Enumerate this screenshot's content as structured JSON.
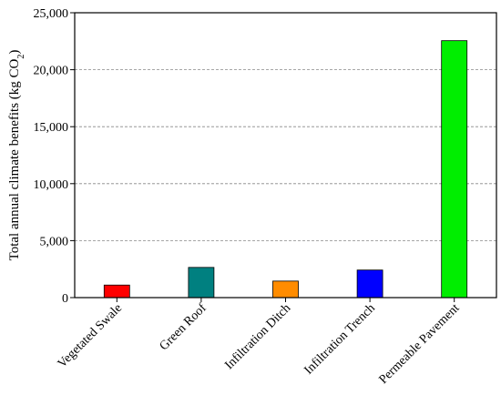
{
  "chart_data": {
    "type": "bar",
    "title": "",
    "xlabel": "",
    "ylabel": {
      "main": "Total annual climate benefits (kg CO",
      "subscript": "2",
      "close": ")"
    },
    "categories": [
      "Vegetated Swale",
      "Green Roof",
      "Infiltration Ditch",
      "Infiltration Trench",
      "Permeable Pavement"
    ],
    "values": [
      1100,
      2650,
      1450,
      2420,
      22550
    ],
    "colors": [
      "#ff0000",
      "#008080",
      "#ff8c00",
      "#0000ff",
      "#00ee00"
    ],
    "ylim": [
      0,
      25000
    ],
    "yticks": [
      0,
      5000,
      10000,
      15000,
      20000,
      25000
    ],
    "ytick_labels": [
      "0",
      "5,000",
      "10,000",
      "15,000",
      "20,000",
      "25,000"
    ],
    "grid": "horizontal-dashed",
    "legend": "none"
  }
}
